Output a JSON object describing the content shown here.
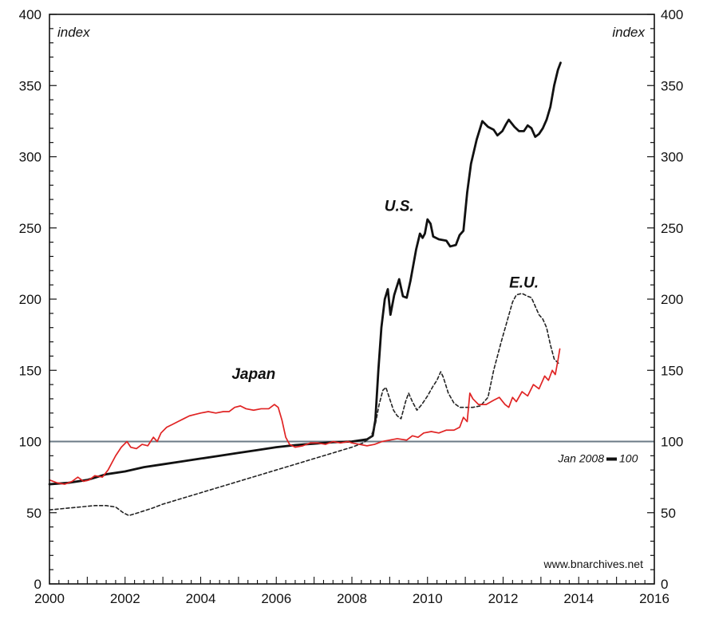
{
  "chart_data": {
    "type": "line",
    "title": "",
    "xlabel": "",
    "ylabel_left": "index",
    "ylabel_right": "index",
    "xlim": [
      2000,
      2016
    ],
    "ylim": [
      0,
      400
    ],
    "x_ticks": [
      2000,
      2002,
      2004,
      2006,
      2008,
      2010,
      2012,
      2014,
      2016
    ],
    "y_ticks": [
      0,
      50,
      100,
      150,
      200,
      250,
      300,
      350,
      400
    ],
    "x_tick_labels": [
      "2000",
      "2002",
      "2004",
      "2006",
      "2008",
      "2010",
      "2012",
      "2014",
      "2016"
    ],
    "y_tick_labels": [
      "0",
      "50",
      "100",
      "150",
      "200",
      "250",
      "300",
      "350",
      "400"
    ],
    "reference_line": {
      "y": 100,
      "label": "Jan 2008 = 100",
      "label_left": "Jan 2008",
      "label_right": "100",
      "color": "#6b7a86"
    },
    "source_text": "www.bnarchives.net",
    "grid": false,
    "series": [
      {
        "name": "U.S.",
        "color": "#111111",
        "dash": "solid",
        "points": [
          [
            2000.0,
            70
          ],
          [
            2000.5,
            71
          ],
          [
            2001.0,
            73
          ],
          [
            2001.5,
            77
          ],
          [
            2002.0,
            79
          ],
          [
            2002.5,
            82
          ],
          [
            2003.0,
            84
          ],
          [
            2003.5,
            86
          ],
          [
            2004.0,
            88
          ],
          [
            2004.5,
            90
          ],
          [
            2005.0,
            92
          ],
          [
            2005.5,
            94
          ],
          [
            2006.0,
            96
          ],
          [
            2006.5,
            97.5
          ],
          [
            2007.0,
            98.5
          ],
          [
            2007.5,
            99.5
          ],
          [
            2008.0,
            100
          ],
          [
            2008.4,
            101.5
          ],
          [
            2008.55,
            104
          ],
          [
            2008.62,
            115
          ],
          [
            2008.7,
            150
          ],
          [
            2008.78,
            180
          ],
          [
            2008.87,
            200
          ],
          [
            2008.95,
            207
          ],
          [
            2009.02,
            189
          ],
          [
            2009.12,
            203
          ],
          [
            2009.25,
            214
          ],
          [
            2009.35,
            202
          ],
          [
            2009.45,
            201
          ],
          [
            2009.55,
            213
          ],
          [
            2009.7,
            235
          ],
          [
            2009.8,
            246
          ],
          [
            2009.87,
            243
          ],
          [
            2009.93,
            246
          ],
          [
            2010.0,
            256
          ],
          [
            2010.08,
            253
          ],
          [
            2010.15,
            244
          ],
          [
            2010.3,
            242
          ],
          [
            2010.5,
            241
          ],
          [
            2010.6,
            237
          ],
          [
            2010.75,
            238
          ],
          [
            2010.85,
            245
          ],
          [
            2010.95,
            248
          ],
          [
            2011.05,
            275
          ],
          [
            2011.15,
            295
          ],
          [
            2011.3,
            312
          ],
          [
            2011.45,
            325
          ],
          [
            2011.6,
            321
          ],
          [
            2011.75,
            319
          ],
          [
            2011.85,
            315
          ],
          [
            2011.98,
            318
          ],
          [
            2012.08,
            323
          ],
          [
            2012.15,
            326
          ],
          [
            2012.3,
            321
          ],
          [
            2012.42,
            318
          ],
          [
            2012.55,
            318
          ],
          [
            2012.65,
            322
          ],
          [
            2012.75,
            320
          ],
          [
            2012.85,
            314
          ],
          [
            2012.95,
            316
          ],
          [
            2013.05,
            320
          ],
          [
            2013.15,
            326
          ],
          [
            2013.25,
            335
          ],
          [
            2013.35,
            350
          ],
          [
            2013.45,
            361
          ],
          [
            2013.52,
            366
          ]
        ]
      },
      {
        "name": "E.U.",
        "color": "#222222",
        "dash": "dashed",
        "points": [
          [
            2000.0,
            52
          ],
          [
            2000.4,
            53
          ],
          [
            2000.8,
            54
          ],
          [
            2001.2,
            55
          ],
          [
            2001.5,
            55
          ],
          [
            2001.75,
            54
          ],
          [
            2001.95,
            50
          ],
          [
            2002.1,
            48
          ],
          [
            2002.35,
            50
          ],
          [
            2002.7,
            53
          ],
          [
            2003.0,
            56
          ],
          [
            2003.5,
            60
          ],
          [
            2004.0,
            64
          ],
          [
            2004.5,
            68
          ],
          [
            2005.0,
            72
          ],
          [
            2005.5,
            76
          ],
          [
            2006.0,
            80
          ],
          [
            2006.5,
            84
          ],
          [
            2007.0,
            88
          ],
          [
            2007.5,
            92
          ],
          [
            2008.0,
            96
          ],
          [
            2008.3,
            99
          ],
          [
            2008.5,
            103
          ],
          [
            2008.62,
            112
          ],
          [
            2008.72,
            126
          ],
          [
            2008.82,
            136
          ],
          [
            2008.9,
            138
          ],
          [
            2009.0,
            130
          ],
          [
            2009.1,
            122
          ],
          [
            2009.2,
            118
          ],
          [
            2009.3,
            116
          ],
          [
            2009.42,
            128
          ],
          [
            2009.5,
            134
          ],
          [
            2009.6,
            128
          ],
          [
            2009.72,
            122
          ],
          [
            2009.85,
            126
          ],
          [
            2010.0,
            132
          ],
          [
            2010.15,
            139
          ],
          [
            2010.25,
            143
          ],
          [
            2010.35,
            149
          ],
          [
            2010.42,
            145
          ],
          [
            2010.55,
            134
          ],
          [
            2010.7,
            127
          ],
          [
            2010.85,
            124
          ],
          [
            2011.0,
            124
          ],
          [
            2011.2,
            124
          ],
          [
            2011.4,
            125
          ],
          [
            2011.6,
            131
          ],
          [
            2011.75,
            150
          ],
          [
            2011.95,
            170
          ],
          [
            2012.1,
            184
          ],
          [
            2012.25,
            198
          ],
          [
            2012.35,
            203
          ],
          [
            2012.5,
            204
          ],
          [
            2012.65,
            202
          ],
          [
            2012.75,
            201
          ],
          [
            2012.85,
            195
          ],
          [
            2012.95,
            189
          ],
          [
            2013.05,
            186
          ],
          [
            2013.15,
            180
          ],
          [
            2013.25,
            168
          ],
          [
            2013.35,
            158
          ],
          [
            2013.5,
            154
          ]
        ]
      },
      {
        "name": "Japan",
        "color": "#e02424",
        "dash": "solid",
        "points": [
          [
            2000.0,
            73
          ],
          [
            2000.2,
            71
          ],
          [
            2000.4,
            70
          ],
          [
            2000.6,
            72
          ],
          [
            2000.75,
            75
          ],
          [
            2000.9,
            72
          ],
          [
            2001.05,
            73
          ],
          [
            2001.2,
            76
          ],
          [
            2001.4,
            75
          ],
          [
            2001.55,
            80
          ],
          [
            2001.75,
            90
          ],
          [
            2001.9,
            96
          ],
          [
            2002.05,
            100
          ],
          [
            2002.15,
            96
          ],
          [
            2002.3,
            95
          ],
          [
            2002.45,
            98
          ],
          [
            2002.6,
            97
          ],
          [
            2002.75,
            103
          ],
          [
            2002.85,
            100
          ],
          [
            2002.95,
            106
          ],
          [
            2003.1,
            110
          ],
          [
            2003.25,
            112
          ],
          [
            2003.4,
            114
          ],
          [
            2003.55,
            116
          ],
          [
            2003.7,
            118
          ],
          [
            2003.85,
            119
          ],
          [
            2004.0,
            120
          ],
          [
            2004.2,
            121
          ],
          [
            2004.4,
            120
          ],
          [
            2004.6,
            121
          ],
          [
            2004.75,
            121
          ],
          [
            2004.9,
            124
          ],
          [
            2005.05,
            125
          ],
          [
            2005.2,
            123
          ],
          [
            2005.4,
            122
          ],
          [
            2005.6,
            123
          ],
          [
            2005.8,
            123
          ],
          [
            2005.95,
            126
          ],
          [
            2006.05,
            124
          ],
          [
            2006.15,
            115
          ],
          [
            2006.25,
            103
          ],
          [
            2006.35,
            98
          ],
          [
            2006.5,
            96
          ],
          [
            2006.7,
            97
          ],
          [
            2006.9,
            99
          ],
          [
            2007.1,
            99
          ],
          [
            2007.3,
            98
          ],
          [
            2007.5,
            100
          ],
          [
            2007.7,
            99
          ],
          [
            2007.9,
            100
          ],
          [
            2008.0,
            99
          ],
          [
            2008.2,
            98
          ],
          [
            2008.4,
            97
          ],
          [
            2008.6,
            98
          ],
          [
            2008.8,
            100
          ],
          [
            2009.0,
            101
          ],
          [
            2009.2,
            102
          ],
          [
            2009.45,
            101
          ],
          [
            2009.6,
            104
          ],
          [
            2009.75,
            103
          ],
          [
            2009.9,
            106
          ],
          [
            2010.1,
            107
          ],
          [
            2010.3,
            106
          ],
          [
            2010.5,
            108
          ],
          [
            2010.7,
            108
          ],
          [
            2010.85,
            110
          ],
          [
            2010.95,
            117
          ],
          [
            2011.05,
            114
          ],
          [
            2011.12,
            134
          ],
          [
            2011.2,
            130
          ],
          [
            2011.35,
            126
          ],
          [
            2011.55,
            126
          ],
          [
            2011.75,
            129
          ],
          [
            2011.9,
            131
          ],
          [
            2012.05,
            126
          ],
          [
            2012.15,
            124
          ],
          [
            2012.25,
            131
          ],
          [
            2012.35,
            128
          ],
          [
            2012.5,
            135
          ],
          [
            2012.65,
            132
          ],
          [
            2012.8,
            140
          ],
          [
            2012.95,
            137
          ],
          [
            2013.1,
            146
          ],
          [
            2013.2,
            143
          ],
          [
            2013.3,
            150
          ],
          [
            2013.38,
            147
          ],
          [
            2013.45,
            157
          ],
          [
            2013.5,
            165
          ]
        ]
      }
    ],
    "series_labels": [
      {
        "series": "U.S.",
        "text": "U.S.",
        "x": 2009.25,
        "y": 262
      },
      {
        "series": "E.U.",
        "text": "E.U.",
        "x": 2012.55,
        "y": 208
      },
      {
        "series": "Japan",
        "text": "Japan",
        "x": 2005.4,
        "y": 144
      }
    ]
  }
}
